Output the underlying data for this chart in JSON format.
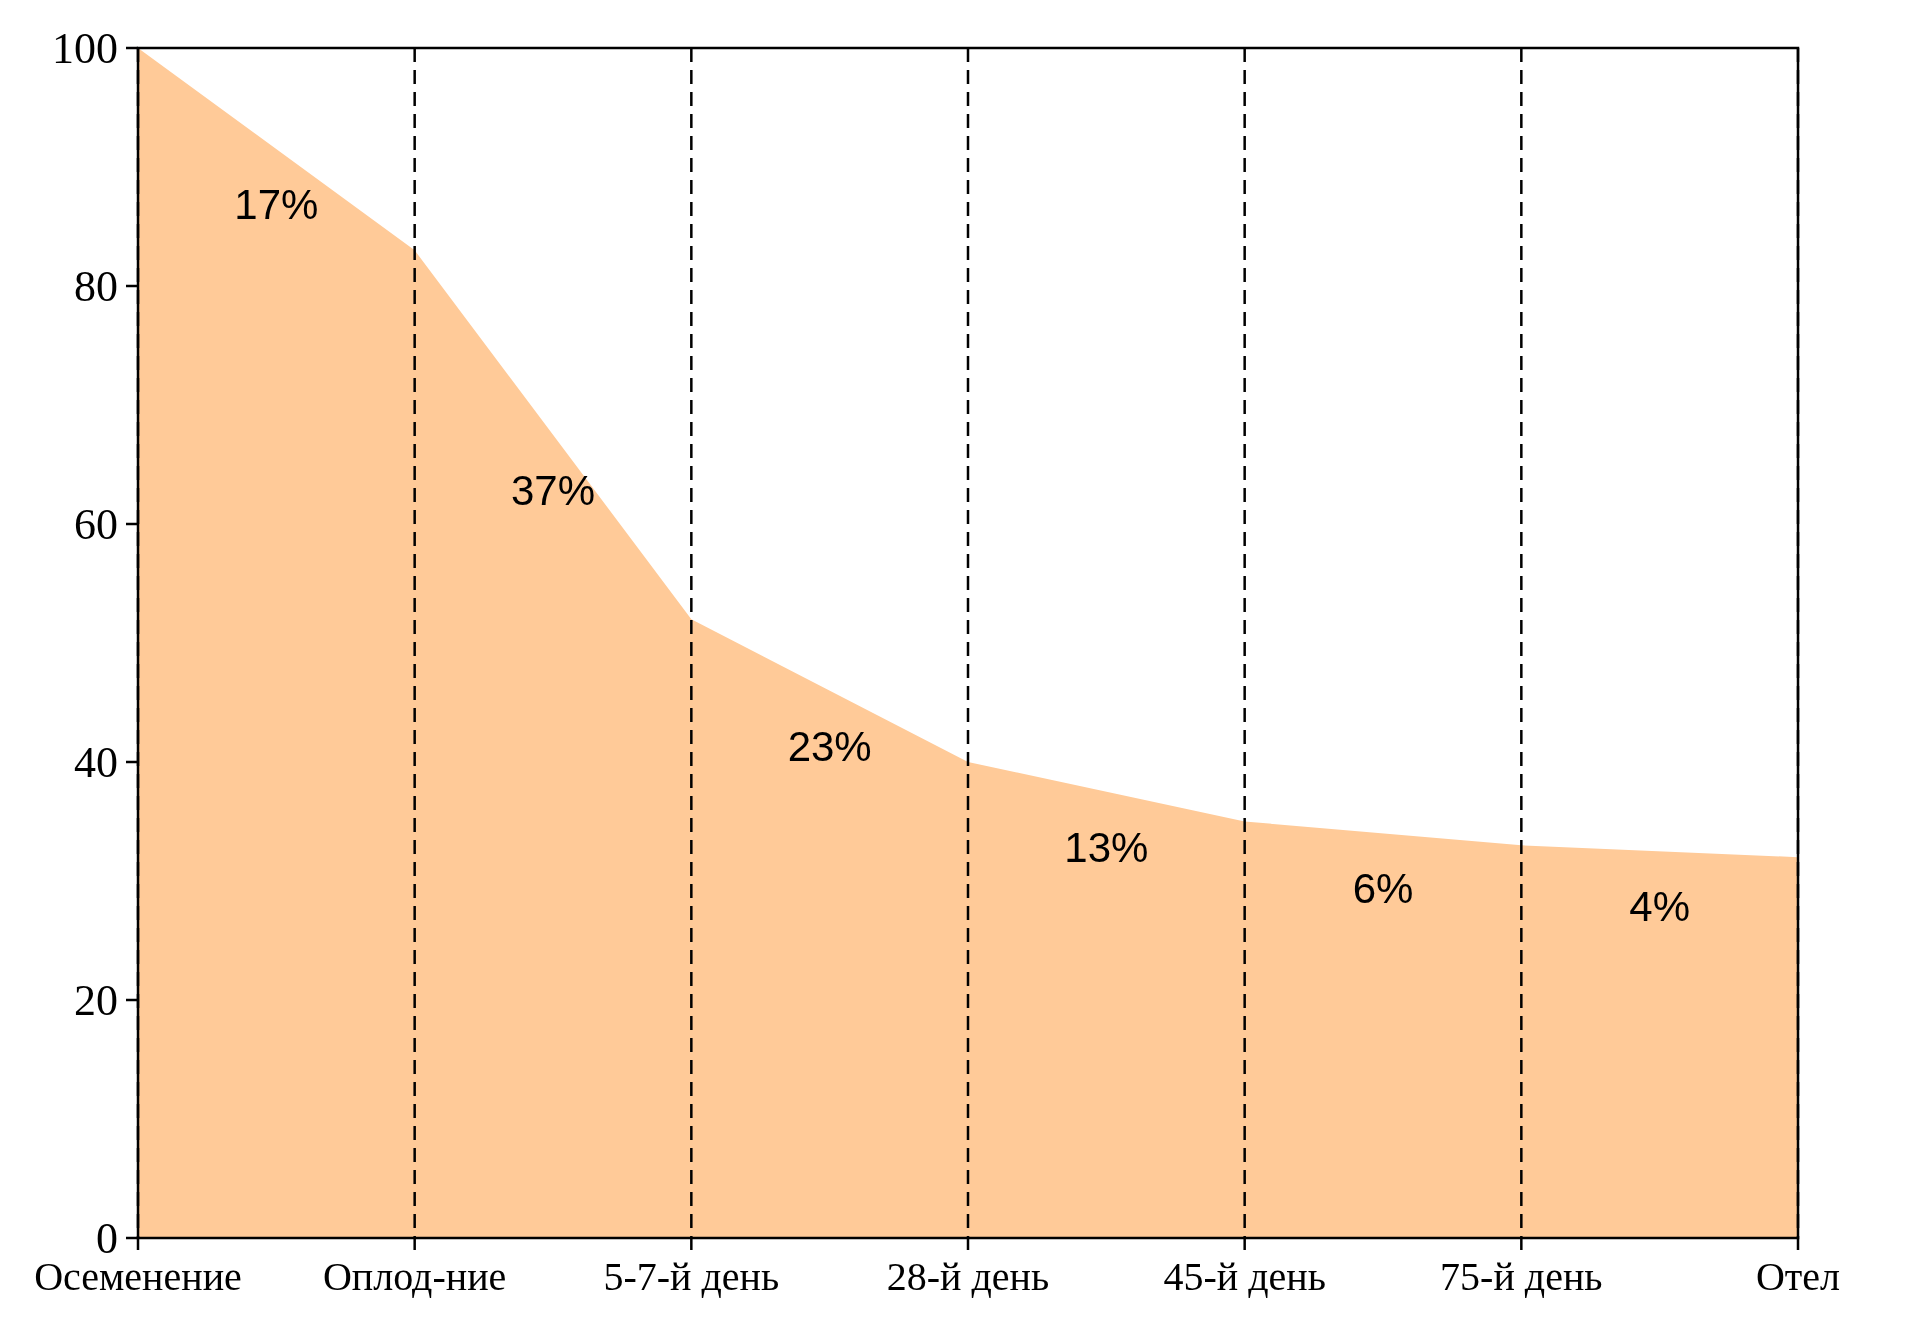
{
  "chart_data": {
    "type": "area",
    "categories": [
      "Осеменение",
      "Оплод-ние",
      "5-7-й день",
      "28-й день",
      "45-й день",
      "75-й день",
      "Отел"
    ],
    "values": [
      100,
      83,
      52,
      40,
      35,
      33,
      32
    ],
    "color": "#ffca98",
    "ylim": [
      0,
      100
    ],
    "yticks": [
      0,
      20,
      40,
      60,
      80,
      100
    ],
    "grid": "x",
    "line_style": "dashed",
    "annotations": [
      "17%",
      "37%",
      "23%",
      "13%",
      "6%",
      "4%"
    ]
  }
}
